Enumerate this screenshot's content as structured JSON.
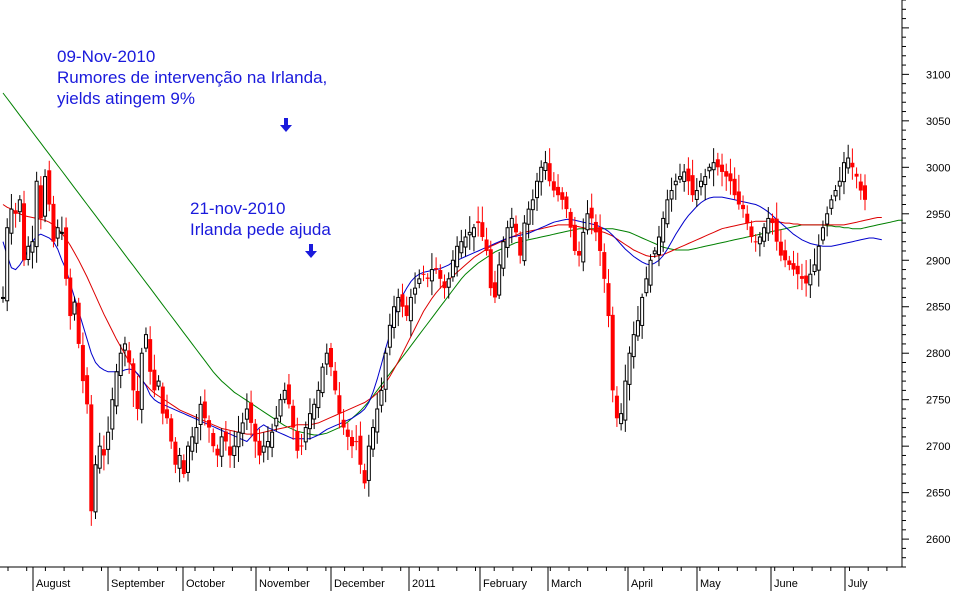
{
  "annotations": [
    {
      "lines": [
        "09-Nov-2010",
        "Rumores de intervenção na Irlanda,",
        "yields atingem 9%"
      ]
    },
    {
      "lines": [
        "21-nov-2010",
        "Irlanda pede ajuda"
      ]
    }
  ],
  "chart_data": {
    "type": "candlestick",
    "grid": false,
    "colors": {
      "up": "#000000",
      "down": "#ff0000",
      "ma_short": "#0000cc",
      "ma_mid": "#dd0000",
      "ma_long": "#008000",
      "annotation": "#1a1adc",
      "axis": "#000000"
    },
    "y_axis": {
      "side": "right",
      "ylim": [
        2570,
        3180
      ],
      "ticks": [
        2600,
        2650,
        2700,
        2750,
        2800,
        2850,
        2900,
        2950,
        3000,
        3050,
        3100
      ]
    },
    "x_axis": {
      "labels": [
        "August",
        "September",
        "October",
        "November",
        "December",
        "2011",
        "February",
        "March",
        "April",
        "May",
        "June",
        "July"
      ]
    },
    "close": [
      2860,
      2935,
      2955,
      2950,
      2965,
      2900,
      2915,
      2920,
      2985,
      2945,
      2990,
      2960,
      2920,
      2935,
      2930,
      2880,
      2840,
      2855,
      2810,
      2770,
      2745,
      2630,
      2680,
      2700,
      2690,
      2715,
      2750,
      2780,
      2800,
      2810,
      2790,
      2760,
      2740,
      2800,
      2820,
      2780,
      2760,
      2770,
      2735,
      2730,
      2705,
      2680,
      2690,
      2670,
      2700,
      2710,
      2720,
      2745,
      2730,
      2720,
      2700,
      2690,
      2710,
      2705,
      2690,
      2700,
      2715,
      2725,
      2740,
      2725,
      2705,
      2690,
      2700,
      2705,
      2715,
      2730,
      2750,
      2760,
      2745,
      2720,
      2695,
      2700,
      2720,
      2735,
      2745,
      2760,
      2785,
      2800,
      2785,
      2760,
      2735,
      2720,
      2710,
      2700,
      2705,
      2680,
      2660,
      2700,
      2720,
      2740,
      2760,
      2800,
      2830,
      2850,
      2860,
      2850,
      2840,
      2860,
      2870,
      2880,
      2885,
      2880,
      2890,
      2890,
      2880,
      2870,
      2880,
      2900,
      2915,
      2920,
      2925,
      2930,
      2935,
      2940,
      2925,
      2910,
      2870,
      2860,
      2895,
      2920,
      2935,
      2945,
      2930,
      2905,
      2940,
      2955,
      2965,
      2985,
      3000,
      3005,
      2985,
      2975,
      2970,
      2965,
      2955,
      2935,
      2910,
      2905,
      2930,
      2950,
      2945,
      2930,
      2910,
      2880,
      2840,
      2760,
      2730,
      2735,
      2770,
      2800,
      2820,
      2835,
      2860,
      2880,
      2900,
      2910,
      2925,
      2945,
      2965,
      2975,
      2985,
      2990,
      2995,
      2985,
      2970,
      2975,
      2985,
      2990,
      3000,
      3005,
      3000,
      2995,
      2990,
      2985,
      2970,
      2960,
      2955,
      2940,
      2925,
      2920,
      2925,
      2935,
      2945,
      2940,
      2920,
      2905,
      2900,
      2895,
      2890,
      2885,
      2880,
      2875,
      2885,
      2895,
      2915,
      2935,
      2950,
      2965,
      2975,
      2985,
      3005,
      3010,
      3000,
      2990,
      2975,
      2965
    ],
    "ma_short": [
      2920,
      2905,
      2892,
      2890,
      2895,
      2902,
      2912,
      2920,
      2926,
      2928,
      2926,
      2924,
      2920,
      2912,
      2900,
      2890,
      2875,
      2860,
      2845,
      2830,
      2815,
      2800,
      2790,
      2785,
      2782,
      2780,
      2780,
      2780,
      2780,
      2782,
      2783,
      2782,
      2778,
      2772,
      2765,
      2755,
      2750,
      2747,
      2745,
      2743,
      2741,
      2739,
      2737,
      2735,
      2733,
      2731,
      2729,
      2727,
      2725,
      2723,
      2721,
      2719,
      2717,
      2715,
      2713,
      2711,
      2709,
      2707,
      2705,
      2710,
      2715,
      2720,
      2723,
      2720,
      2718,
      2716,
      2714,
      2712,
      2710,
      2708,
      2708,
      2708,
      2708,
      2708,
      2710,
      2712,
      2715,
      2718,
      2720,
      2722,
      2724,
      2726,
      2728,
      2730,
      2733,
      2736,
      2740,
      2747,
      2758,
      2772,
      2788,
      2805,
      2820,
      2838,
      2852,
      2862,
      2870,
      2877,
      2882,
      2885,
      2887,
      2888,
      2889,
      2890,
      2891,
      2893,
      2895,
      2898,
      2900,
      2902,
      2904,
      2906,
      2908,
      2910,
      2912,
      2914,
      2916,
      2918,
      2920,
      2922,
      2924,
      2925,
      2926,
      2927,
      2928,
      2929,
      2931,
      2933,
      2935,
      2937,
      2939,
      2941,
      2942,
      2943,
      2944,
      2944,
      2943,
      2942,
      2941,
      2940,
      2939,
      2938,
      2936,
      2934,
      2931,
      2927,
      2922,
      2917,
      2912,
      2908,
      2904,
      2901,
      2898,
      2896,
      2895,
      2897,
      2900,
      2905,
      2912,
      2920,
      2928,
      2935,
      2942,
      2948,
      2953,
      2958,
      2962,
      2965,
      2967,
      2968,
      2968,
      2968,
      2967,
      2966,
      2965,
      2964,
      2963,
      2962,
      2961,
      2960,
      2958,
      2955,
      2952,
      2948,
      2944,
      2940,
      2936,
      2932,
      2928,
      2925,
      2922,
      2920,
      2918,
      2917,
      2916,
      2915,
      2915,
      2915,
      2916,
      2917,
      2918,
      2919,
      2920,
      2921,
      2922,
      2923,
      2924,
      2924,
      2923,
      2922
    ],
    "ma_mid": [
      2960,
      2957,
      2955,
      2952,
      2950,
      2948,
      2947,
      2946,
      2945,
      2944,
      2943,
      2941,
      2938,
      2934,
      2929,
      2923,
      2916,
      2908,
      2900,
      2891,
      2882,
      2872,
      2862,
      2852,
      2842,
      2833,
      2824,
      2815,
      2807,
      2799,
      2791,
      2784,
      2777,
      2771,
      2766,
      2761,
      2757,
      2754,
      2751,
      2748,
      2745,
      2742,
      2739,
      2737,
      2735,
      2733,
      2731,
      2729,
      2727,
      2725,
      2723,
      2721,
      2719,
      2718,
      2717,
      2716,
      2715,
      2714,
      2713,
      2713,
      2713,
      2714,
      2715,
      2716,
      2717,
      2718,
      2719,
      2720,
      2721,
      2722,
      2723,
      2723,
      2723,
      2723,
      2724,
      2725,
      2727,
      2729,
      2731,
      2733,
      2735,
      2737,
      2739,
      2741,
      2743,
      2745,
      2747,
      2750,
      2753,
      2757,
      2762,
      2768,
      2775,
      2783,
      2791,
      2800,
      2809,
      2818,
      2827,
      2836,
      2845,
      2852,
      2859,
      2865,
      2870,
      2875,
      2879,
      2883,
      2887,
      2891,
      2895,
      2899,
      2903,
      2906,
      2909,
      2912,
      2915,
      2917,
      2919,
      2921,
      2923,
      2925,
      2927,
      2929,
      2930,
      2931,
      2932,
      2933,
      2934,
      2935,
      2936,
      2937,
      2938,
      2938,
      2938,
      2938,
      2937,
      2936,
      2935,
      2934,
      2933,
      2932,
      2931,
      2930,
      2928,
      2926,
      2923,
      2920,
      2917,
      2914,
      2911,
      2909,
      2907,
      2905,
      2904,
      2904,
      2905,
      2906,
      2908,
      2910,
      2912,
      2914,
      2916,
      2918,
      2920,
      2922,
      2924,
      2926,
      2928,
      2930,
      2932,
      2934,
      2935,
      2936,
      2937,
      2938,
      2939,
      2940,
      2941,
      2942,
      2942,
      2942,
      2942,
      2942,
      2941,
      2941,
      2940,
      2940,
      2939,
      2939,
      2938,
      2938,
      2938,
      2938,
      2938,
      2938,
      2938,
      2938,
      2938,
      2938,
      2938,
      2939,
      2940,
      2941,
      2942,
      2943,
      2944,
      2945,
      2946,
      2946
    ],
    "ma_long": [
      3080,
      3074,
      3068,
      3062,
      3056,
      3050,
      3044,
      3038,
      3032,
      3026,
      3020,
      3014,
      3008,
      3002,
      2996,
      2990,
      2984,
      2978,
      2972,
      2966,
      2960,
      2954,
      2948,
      2942,
      2936,
      2930,
      2924,
      2918,
      2912,
      2906,
      2900,
      2894,
      2888,
      2882,
      2876,
      2870,
      2864,
      2858,
      2852,
      2846,
      2840,
      2834,
      2828,
      2822,
      2816,
      2810,
      2804,
      2798,
      2792,
      2786,
      2780,
      2775,
      2770,
      2766,
      2762,
      2758,
      2755,
      2752,
      2749,
      2746,
      2743,
      2740,
      2737,
      2734,
      2731,
      2728,
      2725,
      2722,
      2720,
      2718,
      2716,
      2715,
      2714,
      2713,
      2712,
      2712,
      2713,
      2714,
      2716,
      2718,
      2720,
      2723,
      2726,
      2730,
      2734,
      2738,
      2743,
      2748,
      2754,
      2760,
      2766,
      2772,
      2778,
      2784,
      2790,
      2796,
      2802,
      2808,
      2814,
      2820,
      2826,
      2832,
      2838,
      2844,
      2850,
      2856,
      2862,
      2868,
      2874,
      2880,
      2885,
      2889,
      2893,
      2897,
      2900,
      2903,
      2906,
      2909,
      2911,
      2913,
      2915,
      2917,
      2919,
      2920,
      2921,
      2922,
      2923,
      2924,
      2925,
      2926,
      2927,
      2928,
      2929,
      2930,
      2931,
      2932,
      2933,
      2934,
      2934,
      2934,
      2934,
      2934,
      2934,
      2934,
      2934,
      2934,
      2933,
      2932,
      2931,
      2930,
      2928,
      2926,
      2924,
      2922,
      2920,
      2918,
      2916,
      2914,
      2913,
      2912,
      2911,
      2911,
      2911,
      2911,
      2912,
      2913,
      2914,
      2915,
      2916,
      2917,
      2918,
      2919,
      2920,
      2921,
      2922,
      2923,
      2924,
      2925,
      2926,
      2927,
      2928,
      2929,
      2930,
      2931,
      2932,
      2933,
      2934,
      2935,
      2936,
      2937,
      2938,
      2938,
      2938,
      2938,
      2938,
      2938,
      2937,
      2937,
      2936,
      2936,
      2935,
      2935,
      2934,
      2934,
      2934,
      2935,
      2936,
      2937,
      2938,
      2939,
      2940,
      2941,
      2942,
      2943,
      2943
    ]
  }
}
